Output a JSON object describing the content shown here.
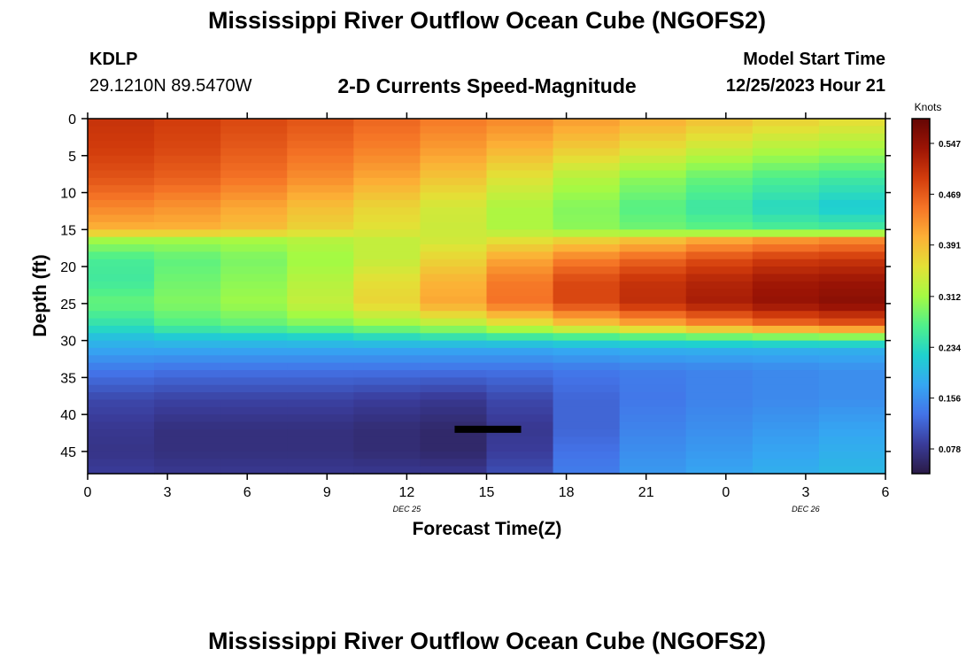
{
  "page": {
    "title": "Mississippi River Outflow Ocean Cube (NGOFS2)",
    "title_repeat": "Mississippi River Outflow Ocean Cube (NGOFS2)",
    "station_id": "KDLP",
    "station_coords": "29.1210N  89.5470W",
    "plot_subtitle": "2-D Currents Speed-Magnitude",
    "model_start_label": "Model Start Time",
    "model_start_value": "12/25/2023 Hour 21"
  },
  "colors": {
    "background": "#ffffff",
    "axis": "#000000",
    "colormap": [
      "#2a1a45",
      "#3a3c9a",
      "#4373e8",
      "#35a6f2",
      "#1fd1cf",
      "#4ff08b",
      "#a4fa43",
      "#e3e136",
      "#fcb036",
      "#f57426",
      "#d23c0c",
      "#9c1405",
      "#650604"
    ]
  },
  "chart_data": {
    "type": "heatmap",
    "xlabel": "Forecast Time(Z)",
    "ylabel": "Depth (ft)",
    "x_ticks": [
      "0",
      "3",
      "6",
      "9",
      "12",
      "15",
      "18",
      "21",
      "0",
      "3",
      "6"
    ],
    "x_range_hours": [
      0,
      30
    ],
    "date_labels": [
      {
        "text": "DEC 25",
        "at_hour": 12
      },
      {
        "text": "DEC 26",
        "at_hour": 27
      }
    ],
    "y_ticks": [
      "0",
      "5",
      "10",
      "15",
      "20",
      "25",
      "30",
      "35",
      "40",
      "45"
    ],
    "y_range_ft": [
      0,
      48
    ],
    "y_inverted": true,
    "colorbar": {
      "label": "Knots",
      "ticks": [
        "0.547",
        "0.469",
        "0.391",
        "0.312",
        "0.234",
        "0.156",
        "0.078"
      ],
      "range": [
        0.04,
        0.585
      ]
    },
    "time_columns_hours": [
      0,
      2.5,
      5,
      7.5,
      10,
      12.5,
      15,
      17.5,
      20,
      22.5,
      25,
      27.5,
      30
    ],
    "depth_levels_ft": [
      0,
      4,
      8,
      12,
      15,
      16.5,
      19,
      22,
      25,
      28,
      29.5,
      31,
      34,
      38,
      42,
      45,
      48
    ],
    "speed_knots": [
      [
        0.51,
        0.5,
        0.49,
        0.48,
        0.47,
        0.45,
        0.44,
        0.43,
        0.41,
        0.4,
        0.38,
        0.37,
        0.36
      ],
      [
        0.5,
        0.49,
        0.48,
        0.46,
        0.45,
        0.43,
        0.41,
        0.39,
        0.37,
        0.35,
        0.33,
        0.32,
        0.31
      ],
      [
        0.48,
        0.47,
        0.46,
        0.44,
        0.42,
        0.4,
        0.37,
        0.34,
        0.31,
        0.29,
        0.27,
        0.26,
        0.25
      ],
      [
        0.44,
        0.43,
        0.42,
        0.4,
        0.38,
        0.36,
        0.33,
        0.31,
        0.28,
        0.26,
        0.24,
        0.22,
        0.21
      ],
      [
        0.4,
        0.4,
        0.4,
        0.38,
        0.36,
        0.35,
        0.33,
        0.31,
        0.29,
        0.28,
        0.27,
        0.26,
        0.26
      ],
      [
        0.31,
        0.31,
        0.31,
        0.32,
        0.33,
        0.34,
        0.35,
        0.37,
        0.38,
        0.4,
        0.42,
        0.43,
        0.44
      ],
      [
        0.25,
        0.27,
        0.28,
        0.3,
        0.32,
        0.35,
        0.39,
        0.43,
        0.45,
        0.47,
        0.49,
        0.5,
        0.5
      ],
      [
        0.23,
        0.28,
        0.29,
        0.31,
        0.34,
        0.38,
        0.42,
        0.47,
        0.5,
        0.51,
        0.53,
        0.54,
        0.54
      ],
      [
        0.27,
        0.29,
        0.3,
        0.32,
        0.35,
        0.39,
        0.43,
        0.47,
        0.5,
        0.52,
        0.54,
        0.55,
        0.56
      ],
      [
        0.22,
        0.26,
        0.27,
        0.28,
        0.3,
        0.31,
        0.33,
        0.36,
        0.39,
        0.41,
        0.44,
        0.46,
        0.47
      ],
      [
        0.2,
        0.21,
        0.22,
        0.22,
        0.23,
        0.24,
        0.25,
        0.26,
        0.27,
        0.28,
        0.29,
        0.3,
        0.3
      ],
      [
        0.18,
        0.18,
        0.18,
        0.18,
        0.18,
        0.18,
        0.18,
        0.18,
        0.19,
        0.19,
        0.19,
        0.19,
        0.19
      ],
      [
        0.14,
        0.13,
        0.13,
        0.13,
        0.13,
        0.13,
        0.13,
        0.13,
        0.14,
        0.14,
        0.15,
        0.15,
        0.16
      ],
      [
        0.1,
        0.09,
        0.09,
        0.09,
        0.09,
        0.08,
        0.08,
        0.11,
        0.13,
        0.14,
        0.15,
        0.15,
        0.16
      ],
      [
        0.09,
        0.07,
        0.07,
        0.07,
        0.07,
        0.06,
        0.06,
        0.1,
        0.14,
        0.15,
        0.16,
        0.17,
        0.18
      ],
      [
        0.08,
        0.07,
        0.07,
        0.07,
        0.07,
        0.06,
        0.06,
        0.11,
        0.15,
        0.16,
        0.17,
        0.18,
        0.19
      ],
      [
        0.09,
        0.08,
        0.08,
        0.08,
        0.08,
        0.08,
        0.08,
        0.12,
        0.16,
        0.17,
        0.18,
        0.19,
        0.2
      ]
    ],
    "annotation": {
      "type": "bar",
      "depth_ft": 42,
      "from_hour": 13.8,
      "to_hour": 16.3
    }
  }
}
